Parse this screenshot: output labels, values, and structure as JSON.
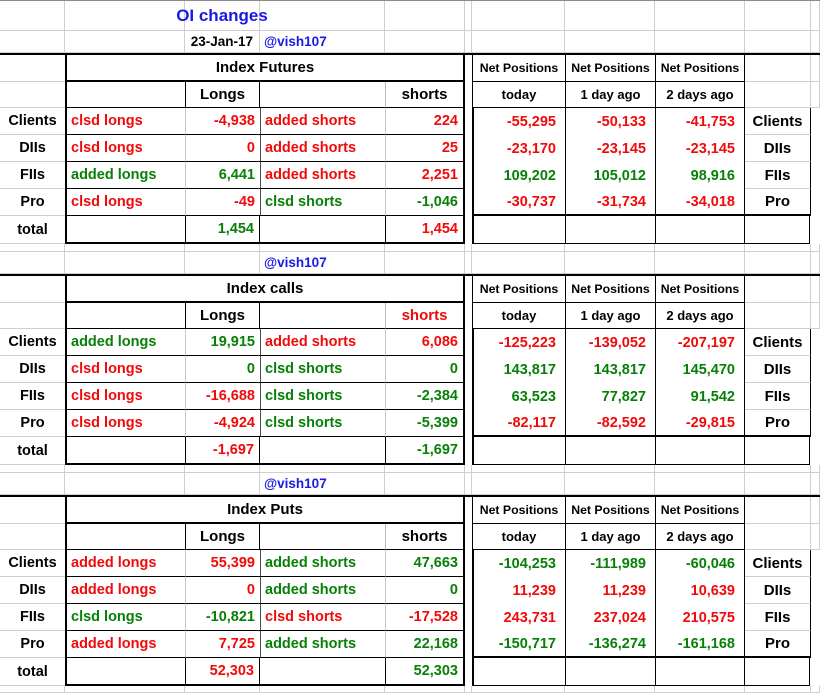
{
  "palette": {
    "red": "#f00a0a",
    "green": "#078007",
    "blue": "#1a1ae6",
    "gridline": "#cfcfcf"
  },
  "header": {
    "title": "OI changes",
    "date": "23-Jan-17",
    "handle": "@vish107"
  },
  "net_header": {
    "label": "Net Positions",
    "cols": [
      "today",
      "1 day ago",
      "2 days ago"
    ]
  },
  "col_headers": {
    "longs": "Longs",
    "shorts": "shorts"
  },
  "sections": [
    {
      "title": "Index Futures",
      "shorts_header_color": "black",
      "handle_below": "@vish107",
      "rows": [
        {
          "label": "Clients",
          "a1": "clsd longs",
          "a1c": "red",
          "v1": "-4,938",
          "v1c": "red",
          "a2": "added shorts",
          "a2c": "red",
          "v2": "224",
          "v2c": "red",
          "n1": "-55,295",
          "n1c": "red",
          "n2": "-50,133",
          "n2c": "red",
          "n3": "-41,753",
          "n3c": "red",
          "rlabel": "Clients"
        },
        {
          "label": "DIIs",
          "a1": "clsd longs",
          "a1c": "red",
          "v1": "0",
          "v1c": "red",
          "a2": "added shorts",
          "a2c": "red",
          "v2": "25",
          "v2c": "red",
          "n1": "-23,170",
          "n1c": "red",
          "n2": "-23,145",
          "n2c": "red",
          "n3": "-23,145",
          "n3c": "red",
          "rlabel": "DIIs"
        },
        {
          "label": "FIIs",
          "a1": "added longs",
          "a1c": "green",
          "v1": "6,441",
          "v1c": "green",
          "a2": "added shorts",
          "a2c": "red",
          "v2": "2,251",
          "v2c": "red",
          "n1": "109,202",
          "n1c": "green",
          "n2": "105,012",
          "n2c": "green",
          "n3": "98,916",
          "n3c": "green",
          "rlabel": "FIIs"
        },
        {
          "label": "Pro",
          "a1": "clsd longs",
          "a1c": "red",
          "v1": "-49",
          "v1c": "red",
          "a2": "clsd shorts",
          "a2c": "green",
          "v2": "-1,046",
          "v2c": "green",
          "n1": "-30,737",
          "n1c": "red",
          "n2": "-31,734",
          "n2c": "red",
          "n3": "-34,018",
          "n3c": "red",
          "rlabel": "Pro"
        }
      ],
      "total": {
        "label": "total",
        "v1": "1,454",
        "v1c": "green",
        "v2": "1,454",
        "v2c": "red"
      }
    },
    {
      "title": "Index calls",
      "shorts_header_color": "red",
      "handle_below": "@vish107",
      "rows": [
        {
          "label": "Clients",
          "a1": "added longs",
          "a1c": "green",
          "v1": "19,915",
          "v1c": "green",
          "a2": "added shorts",
          "a2c": "red",
          "v2": "6,086",
          "v2c": "red",
          "n1": "-125,223",
          "n1c": "red",
          "n2": "-139,052",
          "n2c": "red",
          "n3": "-207,197",
          "n3c": "red",
          "rlabel": "Clients"
        },
        {
          "label": "DIIs",
          "a1": "clsd longs",
          "a1c": "red",
          "v1": "0",
          "v1c": "green",
          "a2": "clsd shorts",
          "a2c": "green",
          "v2": "0",
          "v2c": "green",
          "n1": "143,817",
          "n1c": "green",
          "n2": "143,817",
          "n2c": "green",
          "n3": "145,470",
          "n3c": "green",
          "rlabel": "DIIs"
        },
        {
          "label": "FIIs",
          "a1": "clsd longs",
          "a1c": "red",
          "v1": "-16,688",
          "v1c": "red",
          "a2": "clsd shorts",
          "a2c": "green",
          "v2": "-2,384",
          "v2c": "green",
          "n1": "63,523",
          "n1c": "green",
          "n2": "77,827",
          "n2c": "green",
          "n3": "91,542",
          "n3c": "green",
          "rlabel": "FIIs"
        },
        {
          "label": "Pro",
          "a1": "clsd longs",
          "a1c": "red",
          "v1": "-4,924",
          "v1c": "red",
          "a2": "clsd shorts",
          "a2c": "green",
          "v2": "-5,399",
          "v2c": "green",
          "n1": "-82,117",
          "n1c": "red",
          "n2": "-82,592",
          "n2c": "red",
          "n3": "-29,815",
          "n3c": "red",
          "rlabel": "Pro"
        }
      ],
      "total": {
        "label": "total",
        "v1": "-1,697",
        "v1c": "red",
        "v2": "-1,697",
        "v2c": "green"
      }
    },
    {
      "title": "Index Puts",
      "shorts_header_color": "black",
      "handle_below": null,
      "rows": [
        {
          "label": "Clients",
          "a1": "added longs",
          "a1c": "red",
          "v1": "55,399",
          "v1c": "red",
          "a2": "added shorts",
          "a2c": "green",
          "v2": "47,663",
          "v2c": "green",
          "n1": "-104,253",
          "n1c": "green",
          "n2": "-111,989",
          "n2c": "green",
          "n3": "-60,046",
          "n3c": "green",
          "rlabel": "Clients"
        },
        {
          "label": "DIIs",
          "a1": "added longs",
          "a1c": "red",
          "v1": "0",
          "v1c": "red",
          "a2": "added shorts",
          "a2c": "green",
          "v2": "0",
          "v2c": "green",
          "n1": "11,239",
          "n1c": "red",
          "n2": "11,239",
          "n2c": "red",
          "n3": "10,639",
          "n3c": "red",
          "rlabel": "DIIs"
        },
        {
          "label": "FIIs",
          "a1": "clsd longs",
          "a1c": "green",
          "v1": "-10,821",
          "v1c": "green",
          "a2": "clsd shorts",
          "a2c": "red",
          "v2": "-17,528",
          "v2c": "red",
          "n1": "243,731",
          "n1c": "red",
          "n2": "237,024",
          "n2c": "red",
          "n3": "210,575",
          "n3c": "red",
          "rlabel": "FIIs"
        },
        {
          "label": "Pro",
          "a1": "added longs",
          "a1c": "red",
          "v1": "7,725",
          "v1c": "red",
          "a2": "added shorts",
          "a2c": "green",
          "v2": "22,168",
          "v2c": "green",
          "n1": "-150,717",
          "n1c": "green",
          "n2": "-136,274",
          "n2c": "green",
          "n3": "-161,168",
          "n3c": "green",
          "rlabel": "Pro"
        }
      ],
      "total": {
        "label": "total",
        "v1": "52,303",
        "v1c": "red",
        "v2": "52,303",
        "v2c": "green"
      }
    }
  ]
}
